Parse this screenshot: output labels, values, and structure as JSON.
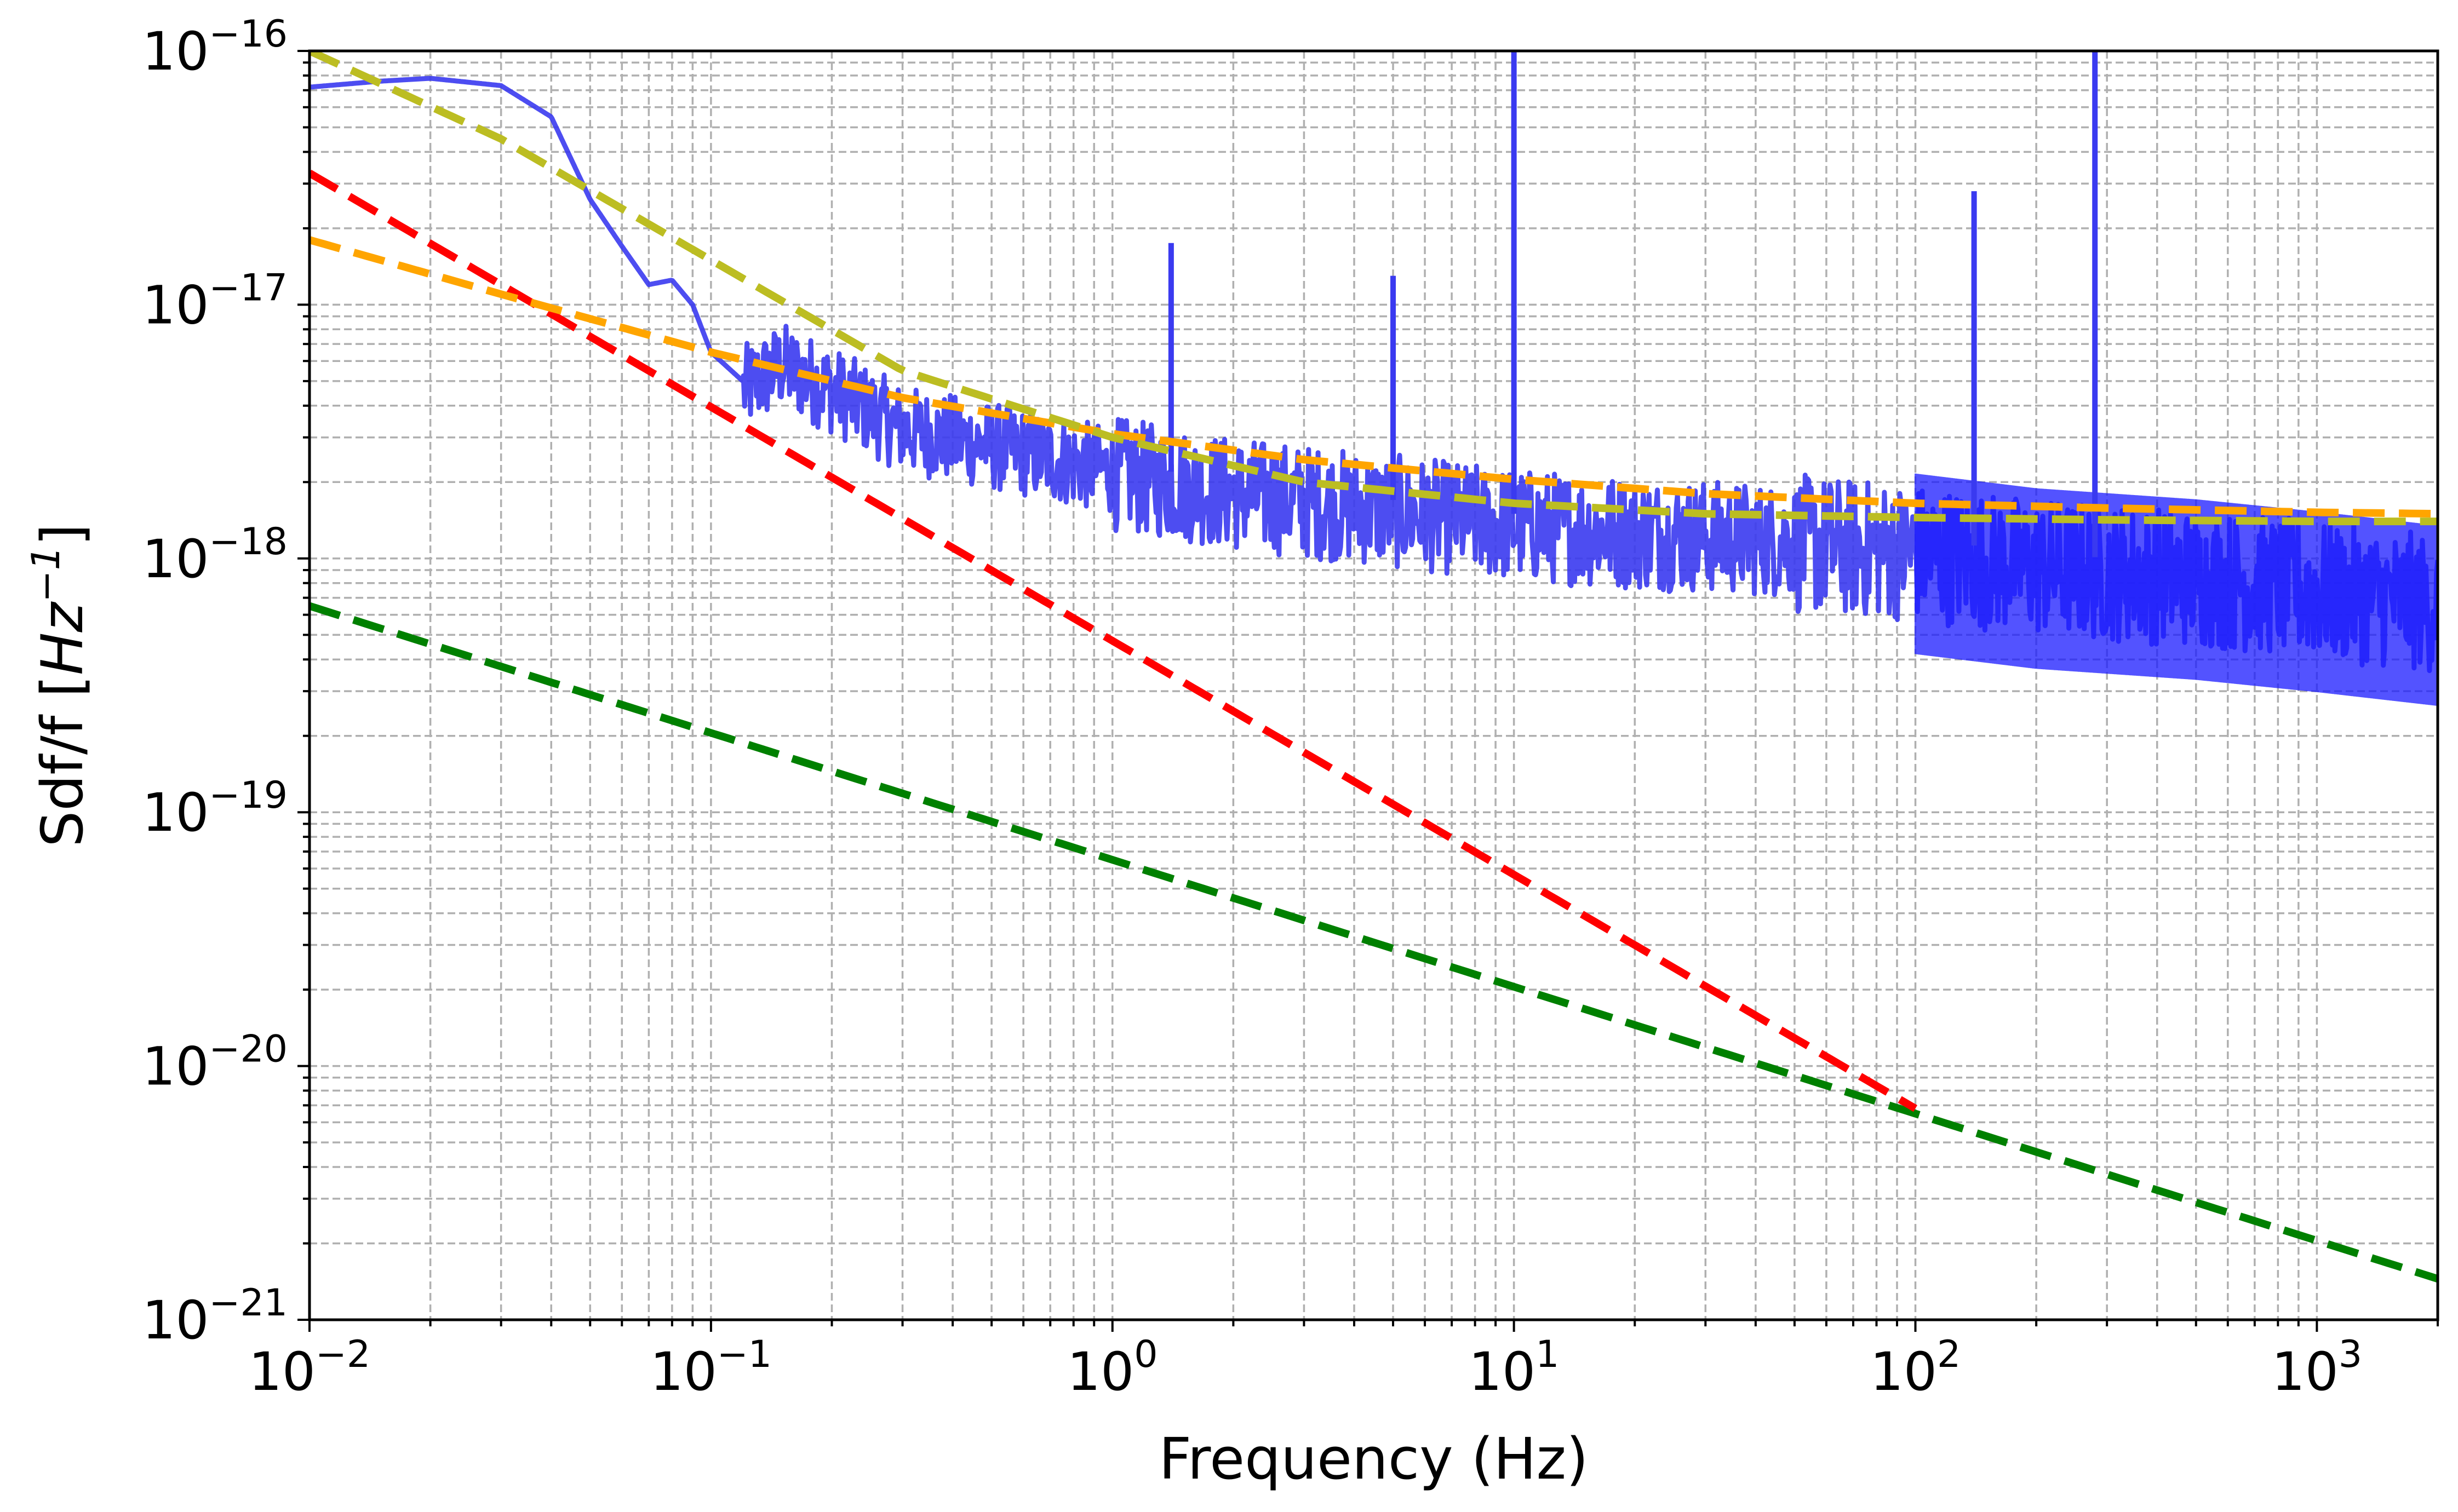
{
  "chart_data": {
    "type": "line",
    "title": "",
    "xlabel": "Frequency (Hz)",
    "ylabel": {
      "main": "Sdf/f [",
      "unit_base": "Hz",
      "unit_exp": "−1",
      "close": "]"
    },
    "xscale": "log",
    "yscale": "log",
    "xlim": [
      0.01,
      2000
    ],
    "ylim": [
      1e-21,
      1e-16
    ],
    "grid": true,
    "legend": "none",
    "x_ticks": [
      {
        "value": 0.01,
        "base": "10",
        "exp": "−2"
      },
      {
        "value": 0.1,
        "base": "10",
        "exp": "−1"
      },
      {
        "value": 1,
        "base": "10",
        "exp": "0"
      },
      {
        "value": 10,
        "base": "10",
        "exp": "1"
      },
      {
        "value": 100,
        "base": "10",
        "exp": "2"
      },
      {
        "value": 1000,
        "base": "10",
        "exp": "3"
      }
    ],
    "y_ticks": [
      {
        "value": 1e-21,
        "base": "10",
        "exp": "−21"
      },
      {
        "value": 1e-20,
        "base": "10",
        "exp": "−20"
      },
      {
        "value": 1e-19,
        "base": "10",
        "exp": "−19"
      },
      {
        "value": 1e-18,
        "base": "10",
        "exp": "−18"
      },
      {
        "value": 1e-17,
        "base": "10",
        "exp": "−17"
      },
      {
        "value": 1e-16,
        "base": "10",
        "exp": "−16"
      }
    ],
    "series": [
      {
        "name": "measured spectrum",
        "style": "solid",
        "color": "#3a3af0",
        "values_note": "noisy measured trace; envelope approximated from plot",
        "x": [
          0.01,
          0.015,
          0.02,
          0.03,
          0.04,
          0.05,
          0.06,
          0.07,
          0.08,
          0.09,
          0.1,
          0.12,
          0.15,
          0.2,
          0.3,
          0.5,
          1,
          2,
          5,
          10,
          20,
          50,
          100,
          200,
          500,
          1000,
          2000
        ],
        "y": [
          7.2e-17,
          7.6e-17,
          7.8e-17,
          7.3e-17,
          5.5e-17,
          2.6e-17,
          1.7e-17,
          1.2e-17,
          1.25e-17,
          1e-17,
          6.5e-18,
          5e-18,
          6.2e-18,
          5e-18,
          3.5e-18,
          3e-18,
          2.4e-18,
          2e-18,
          1.7e-18,
          1.5e-18,
          1.4e-18,
          1.3e-18,
          1.2e-18,
          1.05e-18,
          9.5e-19,
          8.5e-19,
          7.5e-19
        ],
        "peaks": [
          {
            "x": 1.4,
            "y": 1.75e-17
          },
          {
            "x": 5.0,
            "y": 1.3e-17
          },
          {
            "x": 10.0,
            "y": 1e-16
          },
          {
            "x": 140,
            "y": 2.8e-17
          },
          {
            "x": 280,
            "y": 1e-16
          }
        ]
      },
      {
        "name": "yellow-green dashed",
        "style": "dashed",
        "color": "#bcbd22",
        "x": [
          0.01,
          0.03,
          0.1,
          0.3,
          1,
          3,
          10,
          30,
          100,
          300,
          1000,
          2000
        ],
        "y": [
          1e-16,
          4.5e-17,
          1.5e-17,
          5.5e-18,
          3e-18,
          2e-18,
          1.65e-18,
          1.5e-18,
          1.45e-18,
          1.42e-18,
          1.4e-18,
          1.4e-18
        ]
      },
      {
        "name": "orange dashed",
        "style": "dashed",
        "color": "#ffa500",
        "x": [
          0.01,
          0.03,
          0.1,
          0.3,
          1,
          3,
          10,
          30,
          100,
          300,
          1000,
          2000
        ],
        "y": [
          1.8e-17,
          1.1e-17,
          6.5e-18,
          4.3e-18,
          3.1e-18,
          2.45e-18,
          2.05e-18,
          1.8e-18,
          1.65e-18,
          1.58e-18,
          1.52e-18,
          1.5e-18
        ]
      },
      {
        "name": "red dashed",
        "style": "dashed",
        "color": "#ff0000",
        "x": [
          0.01,
          100
        ],
        "y": [
          3.3e-17,
          6.8e-21
        ]
      },
      {
        "name": "green dashed",
        "style": "dashed",
        "color": "#008000",
        "x": [
          0.01,
          2000
        ],
        "y": [
          6.5e-19,
          1.45e-21
        ]
      }
    ]
  }
}
